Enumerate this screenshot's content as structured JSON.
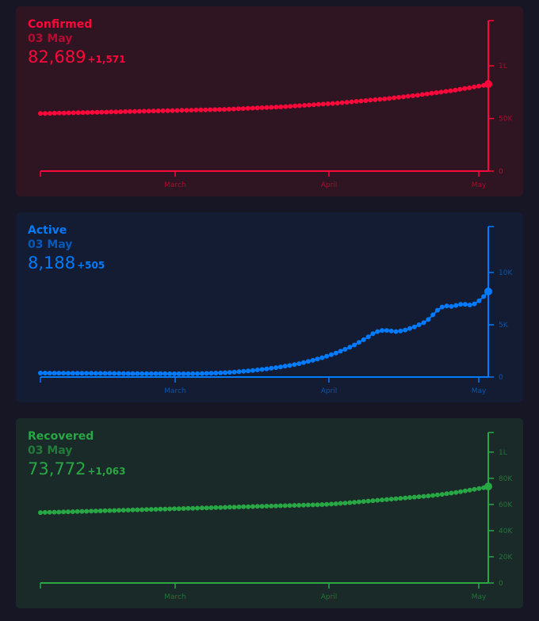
{
  "chart_data": [
    {
      "type": "line",
      "key": "confirmed",
      "title": "Confirmed",
      "date_label": "03 May",
      "total": "82,689",
      "delta": "+1,571",
      "x_ticks": [
        "March",
        "April",
        "May"
      ],
      "y_ticks": [
        "1L",
        "50K",
        "0"
      ],
      "y_tick_values": [
        100000,
        50000,
        0
      ],
      "ylim": [
        0,
        143000
      ],
      "color": "#ff073a",
      "bg": "#2f1422",
      "values": [
        54700,
        54800,
        54900,
        55000,
        55100,
        55200,
        55300,
        55400,
        55500,
        55600,
        55700,
        55800,
        55900,
        56000,
        56100,
        56200,
        56300,
        56400,
        56500,
        56600,
        56700,
        56800,
        56900,
        57000,
        57100,
        57200,
        57300,
        57400,
        57500,
        57600,
        57700,
        57800,
        57900,
        58000,
        58100,
        58200,
        58300,
        58400,
        58500,
        58600,
        58800,
        59000,
        59200,
        59400,
        59600,
        59800,
        60000,
        60200,
        60400,
        60600,
        60800,
        61000,
        61300,
        61600,
        61900,
        62200,
        62500,
        62800,
        63100,
        63400,
        63700,
        64000,
        64300,
        64600,
        65000,
        65400,
        65800,
        66200,
        66600,
        67000,
        67400,
        67800,
        68200,
        68600,
        69100,
        69600,
        70100,
        70600,
        71100,
        71600,
        72100,
        72700,
        73300,
        73900,
        74500,
        75100,
        75700,
        76300,
        77000,
        77700,
        78400,
        79100,
        79900,
        80700,
        81500,
        82689
      ]
    },
    {
      "type": "line",
      "key": "active",
      "title": "Active",
      "date_label": "03 May",
      "total": "8,188",
      "delta": "+505",
      "x_ticks": [
        "March",
        "April",
        "May"
      ],
      "y_ticks": [
        "10K",
        "5K",
        "0"
      ],
      "y_tick_values": [
        10000,
        5000,
        0
      ],
      "ylim": [
        0,
        14400
      ],
      "color": "#007bff",
      "bg": "#131c33",
      "values": [
        380,
        380,
        375,
        375,
        370,
        370,
        365,
        365,
        360,
        360,
        355,
        355,
        350,
        350,
        345,
        345,
        340,
        340,
        335,
        335,
        330,
        330,
        325,
        325,
        320,
        320,
        318,
        316,
        314,
        312,
        310,
        310,
        310,
        315,
        320,
        330,
        345,
        360,
        380,
        400,
        420,
        450,
        480,
        510,
        550,
        590,
        630,
        680,
        730,
        780,
        840,
        900,
        970,
        1040,
        1110,
        1190,
        1280,
        1380,
        1490,
        1600,
        1720,
        1850,
        1990,
        2140,
        2300,
        2470,
        2650,
        2850,
        3070,
        3310,
        3570,
        3850,
        4150,
        4350,
        4450,
        4450,
        4400,
        4350,
        4400,
        4500,
        4650,
        4800,
        5000,
        5200,
        5500,
        5950,
        6400,
        6700,
        6800,
        6750,
        6850,
        6950,
        6950,
        6900,
        7000,
        7300,
        7700,
        8188
      ]
    },
    {
      "type": "line",
      "key": "recovered",
      "title": "Recovered",
      "date_label": "03 May",
      "total": "73,772",
      "delta": "+1,063",
      "x_ticks": [
        "March",
        "April",
        "May"
      ],
      "y_ticks": [
        "1L",
        "80K",
        "60K",
        "40K",
        "20K",
        "0"
      ],
      "y_tick_values": [
        100000,
        80000,
        60000,
        40000,
        20000,
        0
      ],
      "ylim": [
        0,
        115000
      ],
      "color": "#28a745",
      "bg": "#1a2a28",
      "values": [
        53800,
        53900,
        54000,
        54100,
        54200,
        54300,
        54400,
        54500,
        54600,
        54700,
        54800,
        54900,
        55000,
        55100,
        55200,
        55300,
        55400,
        55500,
        55600,
        55700,
        55800,
        55900,
        56000,
        56100,
        56200,
        56300,
        56400,
        56500,
        56600,
        56700,
        56800,
        56900,
        57000,
        57100,
        57200,
        57300,
        57400,
        57500,
        57600,
        57700,
        57800,
        57900,
        58000,
        58100,
        58200,
        58300,
        58400,
        58500,
        58600,
        58700,
        58800,
        58900,
        59000,
        59100,
        59200,
        59300,
        59400,
        59500,
        59600,
        59700,
        59800,
        59900,
        60100,
        60300,
        60500,
        60800,
        61100,
        61400,
        61700,
        62000,
        62300,
        62600,
        62900,
        63200,
        63500,
        63800,
        64100,
        64400,
        64700,
        65000,
        65300,
        65600,
        65900,
        66200,
        66500,
        66900,
        67300,
        67700,
        68200,
        68700,
        69200,
        69800,
        70400,
        71000,
        71600,
        72200,
        72800,
        73772
      ]
    }
  ]
}
